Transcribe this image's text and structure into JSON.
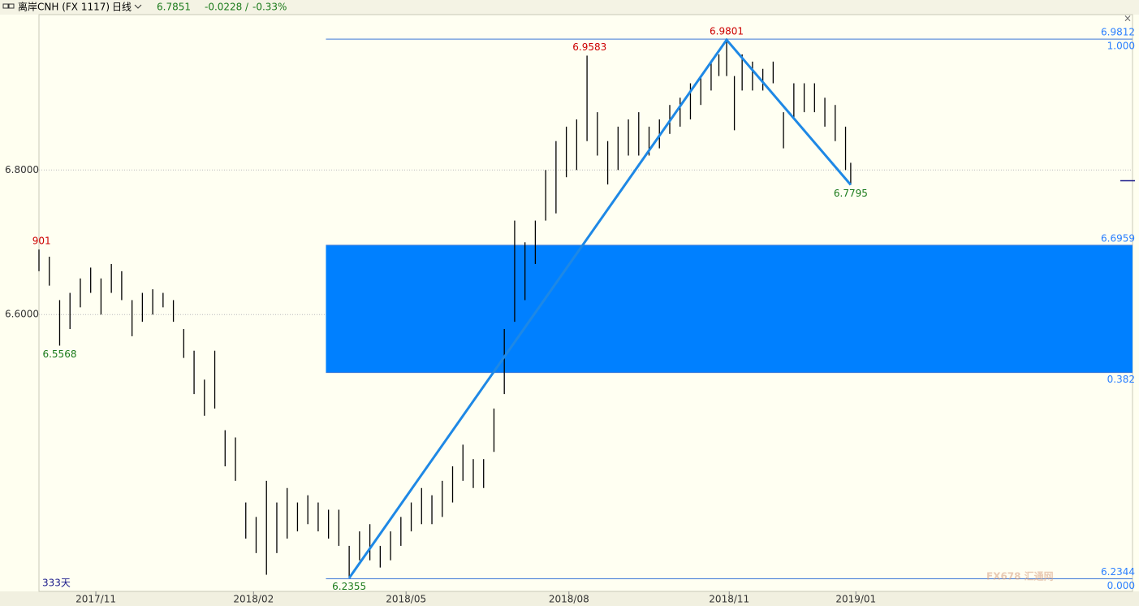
{
  "chart_data": {
    "type": "ohlc",
    "toolbar": {
      "symbol": "离岸CNH (FX 1117)",
      "period": "日线",
      "price": 6.7851,
      "change": -0.0228,
      "separator": "/",
      "change_pct": {
        "value": -0.33,
        "label": "-0.33%"
      }
    },
    "xlim": [
      0,
      423
    ],
    "ylim": [
      6.217,
      7.015
    ],
    "xticks": [
      {
        "value": 22,
        "label": "2017/11"
      },
      {
        "value": 83,
        "label": "2018/02"
      },
      {
        "value": 142,
        "label": "2018/05"
      },
      {
        "value": 205,
        "label": "2018/08"
      },
      {
        "value": 267,
        "label": "2018/11"
      },
      {
        "value": 316,
        "label": "2019/01"
      }
    ],
    "yticks": [
      {
        "value": 6.8,
        "label": "6.8000"
      },
      {
        "value": 6.6,
        "label": "6.6000"
      }
    ],
    "grid": true,
    "bar_color": "#000000",
    "x": [
      0,
      4,
      8,
      12,
      16,
      20,
      24,
      28,
      32,
      36,
      40,
      44,
      48,
      52,
      56,
      60,
      64,
      68,
      72,
      76,
      80,
      84,
      88,
      92,
      96,
      100,
      104,
      108,
      112,
      116,
      120,
      124,
      128,
      132,
      136,
      140,
      144,
      148,
      152,
      156,
      160,
      164,
      168,
      172,
      176,
      180,
      184,
      188,
      192,
      196,
      200,
      204,
      208,
      212,
      216,
      220,
      224,
      228,
      232,
      236,
      240,
      244,
      248,
      252,
      256,
      260,
      263,
      266,
      269,
      272,
      276,
      280,
      284,
      288,
      292,
      296,
      300,
      304,
      308,
      312,
      314
    ],
    "high": [
      6.69,
      6.68,
      6.62,
      6.63,
      6.65,
      6.665,
      6.65,
      6.67,
      6.66,
      6.62,
      6.63,
      6.635,
      6.63,
      6.62,
      6.58,
      6.55,
      6.51,
      6.55,
      6.44,
      6.43,
      6.34,
      6.32,
      6.37,
      6.34,
      6.36,
      6.34,
      6.35,
      6.34,
      6.33,
      6.33,
      6.28,
      6.3,
      6.31,
      6.28,
      6.3,
      6.32,
      6.34,
      6.36,
      6.35,
      6.37,
      6.39,
      6.42,
      6.4,
      6.4,
      6.47,
      6.58,
      6.73,
      6.7,
      6.73,
      6.8,
      6.84,
      6.86,
      6.87,
      6.9583,
      6.88,
      6.84,
      6.86,
      6.87,
      6.88,
      6.86,
      6.87,
      6.89,
      6.9,
      6.92,
      6.93,
      6.95,
      6.96,
      6.9801,
      6.93,
      6.96,
      6.95,
      6.94,
      6.95,
      6.88,
      6.92,
      6.92,
      6.92,
      6.9,
      6.89,
      6.86,
      6.81
    ],
    "low": [
      6.66,
      6.64,
      6.557,
      6.58,
      6.61,
      6.63,
      6.6,
      6.63,
      6.62,
      6.57,
      6.59,
      6.6,
      6.61,
      6.59,
      6.54,
      6.49,
      6.46,
      6.47,
      6.39,
      6.37,
      6.29,
      6.27,
      6.24,
      6.27,
      6.29,
      6.3,
      6.31,
      6.3,
      6.29,
      6.28,
      6.2355,
      6.26,
      6.26,
      6.25,
      6.26,
      6.28,
      6.3,
      6.31,
      6.31,
      6.32,
      6.34,
      6.37,
      6.36,
      6.36,
      6.41,
      6.49,
      6.59,
      6.62,
      6.67,
      6.73,
      6.74,
      6.79,
      6.8,
      6.84,
      6.82,
      6.78,
      6.8,
      6.82,
      6.82,
      6.82,
      6.83,
      6.85,
      6.86,
      6.87,
      6.89,
      6.91,
      6.93,
      6.93,
      6.855,
      6.91,
      6.91,
      6.91,
      6.92,
      6.83,
      6.87,
      6.88,
      6.88,
      6.86,
      6.84,
      6.8,
      6.7795
    ],
    "annotations": [
      {
        "text": "901",
        "x": 1,
        "y": 6.6901,
        "position": "above",
        "color": "#cc0000"
      },
      {
        "x": 8,
        "y": 6.5568,
        "position": "below",
        "color": "#1a7a1a"
      },
      {
        "x": 120,
        "y": 6.2355,
        "position": "below",
        "color": "#1a7a1a"
      },
      {
        "x": 213,
        "y": 6.9583,
        "position": "above",
        "color": "#cc0000"
      },
      {
        "x": 266,
        "y": 6.9801,
        "position": "above",
        "color": "#cc0000"
      },
      {
        "x": 314,
        "y": 6.7795,
        "position": "below",
        "color": "#1a7a1a"
      }
    ],
    "zigzag": {
      "color": "#1e88e5",
      "x": [
        120,
        266,
        314
      ],
      "values": [
        6.2355,
        6.9801,
        6.7795
      ]
    },
    "fib": {
      "start_x": 111,
      "color": "#3c78d8",
      "band_color": "#0080ff",
      "levels": [
        {
          "price": 6.9812,
          "ratio": {
            "value": 1,
            "label": "1.000"
          }
        },
        {
          "price": 6.6959
        },
        {
          "price": 6.5197,
          "ratio": 0.382
        },
        {
          "price": 6.2344,
          "ratio": {
            "value": 0,
            "label": "0.000"
          }
        }
      ]
    },
    "period_label": "333天",
    "watermark": "FX678 汇通网"
  }
}
